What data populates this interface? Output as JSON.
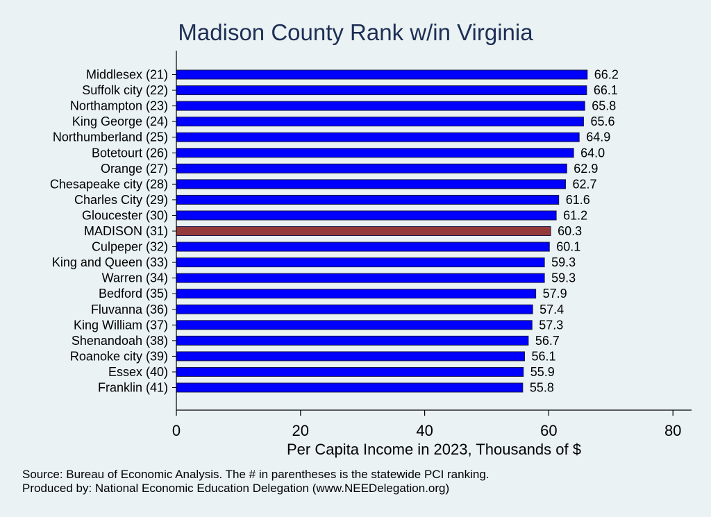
{
  "chart_data": {
    "type": "bar",
    "orientation": "horizontal",
    "title": "Madison County Rank w/in Virginia",
    "xlabel": "Per Capita Income in 2023, Thousands of $",
    "ylabel": "",
    "xlim": [
      0,
      83
    ],
    "xticks": [
      "0",
      "20",
      "40",
      "60",
      "80"
    ],
    "grid": false,
    "categories": [
      "Middlesex (21)",
      "Suffolk city (22)",
      "Northampton (23)",
      "King George (24)",
      "Northumberland (25)",
      "Botetourt (26)",
      "Orange (27)",
      "Chesapeake city (28)",
      "Charles City (29)",
      "Gloucester (30)",
      "MADISON (31)",
      "Culpeper (32)",
      "King and Queen (33)",
      "Warren (34)",
      "Bedford (35)",
      "Fluvanna (36)",
      "King William (37)",
      "Shenandoah (38)",
      "Roanoke city (39)",
      "Essex (40)",
      "Franklin (41)"
    ],
    "values": [
      66.2,
      66.1,
      65.8,
      65.6,
      64.9,
      64.0,
      62.9,
      62.7,
      61.6,
      61.2,
      60.3,
      60.1,
      59.3,
      59.3,
      57.9,
      57.4,
      57.3,
      56.7,
      56.1,
      55.9,
      55.8
    ],
    "value_labels": [
      "66.2",
      "66.1",
      "65.8",
      "65.6",
      "64.9",
      "64.0",
      "62.9",
      "62.7",
      "61.6",
      "61.2",
      "60.3",
      "60.1",
      "59.3",
      "59.3",
      "57.9",
      "57.4",
      "57.3",
      "56.7",
      "56.1",
      "55.9",
      "55.8"
    ],
    "highlight_category": "MADISON (31)",
    "colors": {
      "bar": "#0000ff",
      "highlight": "#943a3a",
      "bar_edge": "#1a1a4a",
      "background": "#eaf2f3",
      "title": "#1e2f56"
    },
    "notes": [
      "Source: Bureau of Economic Analysis. The # in parentheses is the statewide PCI ranking.",
      "Produced by: National Economic Education Delegation (www.NEEDelegation.org)"
    ]
  }
}
